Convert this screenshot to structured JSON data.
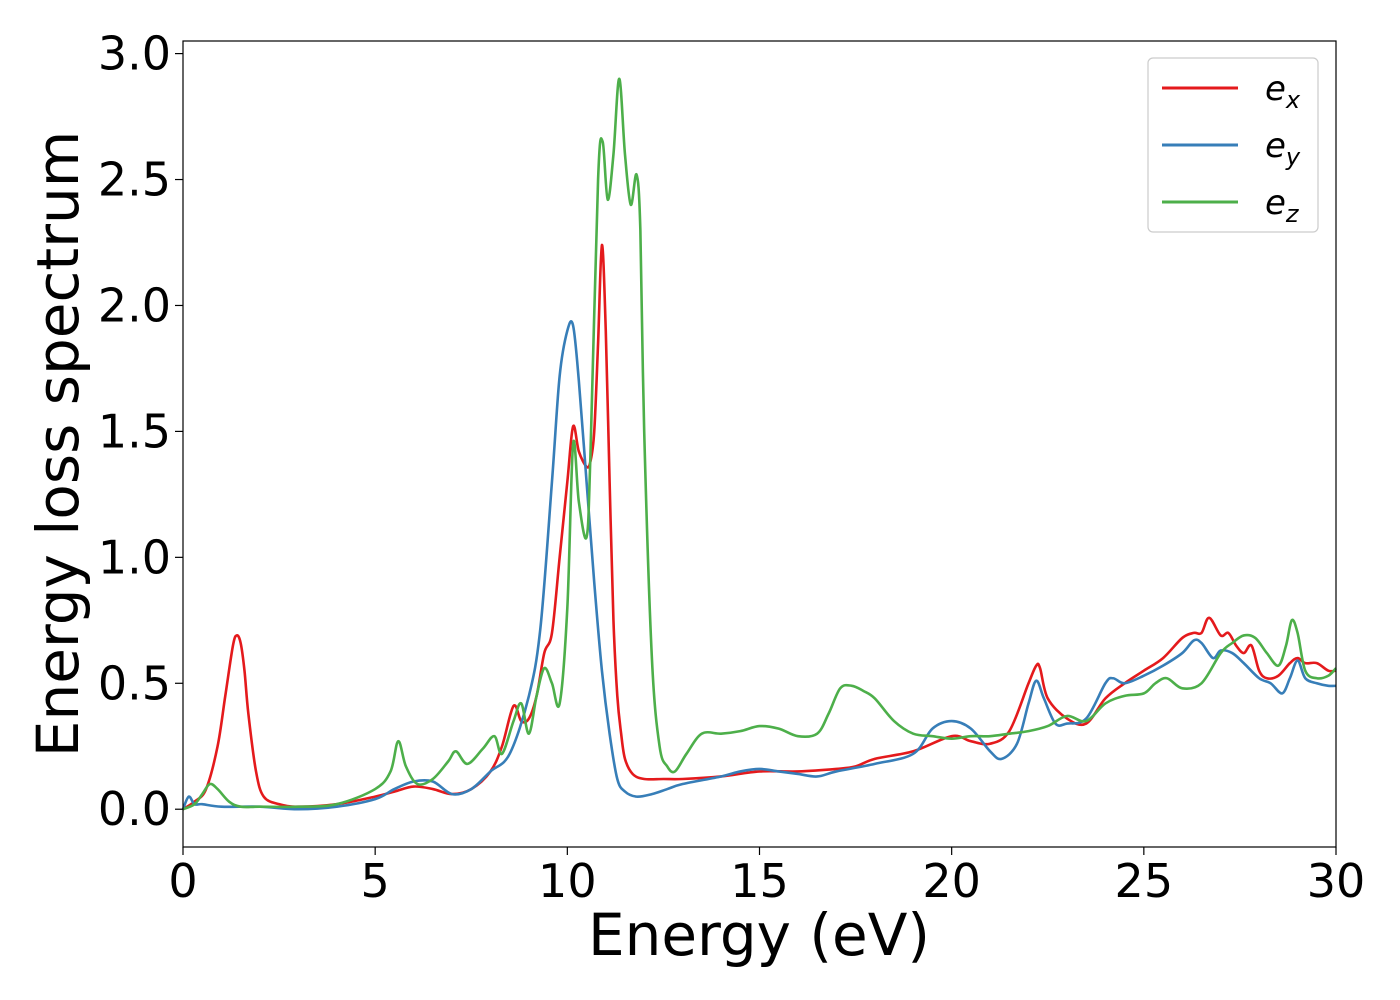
{
  "chart_data": {
    "type": "line",
    "title": "",
    "xlabel": "Energy (eV)",
    "ylabel": "Energy loss spectrum",
    "xlim": [
      0,
      30
    ],
    "ylim": [
      -0.15,
      3.05
    ],
    "xticks": [
      "0",
      "5",
      "10",
      "15",
      "20",
      "25",
      "30"
    ],
    "xtick_values": [
      0,
      5,
      10,
      15,
      20,
      25,
      30
    ],
    "yticks": [
      "0.0",
      "0.5",
      "1.0",
      "1.5",
      "2.0",
      "2.5",
      "3.0"
    ],
    "ytick_values": [
      0,
      0.5,
      1.0,
      1.5,
      2.0,
      2.5,
      3.0
    ],
    "grid": false,
    "legend_position": "top-right",
    "series": [
      {
        "name": "e_x",
        "legend_base": "e",
        "legend_sub": "x",
        "color": "#e41a1c",
        "x": [
          0,
          0.3,
          0.6,
          0.9,
          1.1,
          1.3,
          1.4,
          1.5,
          1.6,
          1.7,
          1.9,
          2.1,
          2.5,
          3.0,
          4.0,
          5.0,
          5.5,
          6.0,
          6.5,
          7.0,
          7.5,
          8.0,
          8.3,
          8.6,
          8.8,
          9.0,
          9.2,
          9.4,
          9.6,
          9.8,
          10.0,
          10.15,
          10.3,
          10.5,
          10.6,
          10.7,
          10.8,
          10.9,
          11.0,
          11.1,
          11.2,
          11.3,
          11.4,
          11.5,
          11.7,
          12.0,
          12.5,
          13,
          14,
          15,
          16,
          17,
          17.5,
          18,
          19,
          20,
          20.5,
          21,
          21.5,
          22,
          22.2,
          22.3,
          22.5,
          23,
          23.5,
          24,
          24.5,
          25,
          25.5,
          26,
          26.3,
          26.5,
          26.7,
          27,
          27.2,
          27.4,
          27.6,
          27.8,
          28,
          28.2,
          28.5,
          28.8,
          29,
          29.2,
          29.5,
          29.8,
          30
        ],
        "y": [
          0,
          0.03,
          0.08,
          0.25,
          0.45,
          0.65,
          0.69,
          0.66,
          0.55,
          0.38,
          0.15,
          0.05,
          0.02,
          0.01,
          0.02,
          0.05,
          0.07,
          0.09,
          0.08,
          0.06,
          0.08,
          0.15,
          0.25,
          0.41,
          0.35,
          0.36,
          0.45,
          0.62,
          0.7,
          1.0,
          1.3,
          1.52,
          1.42,
          1.36,
          1.38,
          1.5,
          1.85,
          2.24,
          1.9,
          1.3,
          0.75,
          0.45,
          0.3,
          0.2,
          0.14,
          0.12,
          0.12,
          0.12,
          0.13,
          0.15,
          0.15,
          0.16,
          0.17,
          0.2,
          0.23,
          0.29,
          0.27,
          0.26,
          0.31,
          0.5,
          0.57,
          0.56,
          0.44,
          0.36,
          0.34,
          0.44,
          0.5,
          0.55,
          0.6,
          0.68,
          0.7,
          0.7,
          0.76,
          0.69,
          0.7,
          0.65,
          0.62,
          0.65,
          0.55,
          0.52,
          0.53,
          0.58,
          0.6,
          0.58,
          0.58,
          0.55,
          0.55
        ]
      },
      {
        "name": "e_y",
        "legend_base": "e",
        "legend_sub": "y",
        "color": "#377eb8",
        "x": [
          0,
          0.15,
          0.3,
          0.5,
          1.0,
          2.0,
          3.0,
          4.0,
          5.0,
          5.5,
          6.0,
          6.5,
          7.0,
          7.5,
          8.0,
          8.5,
          9.0,
          9.3,
          9.6,
          9.8,
          10.0,
          10.15,
          10.3,
          10.5,
          10.7,
          10.9,
          11.1,
          11.3,
          11.5,
          11.8,
          12.2,
          12.6,
          13,
          14,
          14.5,
          15,
          15.5,
          16,
          16.5,
          17,
          18,
          19,
          19.5,
          20,
          20.5,
          21,
          21.3,
          21.7,
          22,
          22.2,
          22.4,
          22.7,
          23,
          23.5,
          24,
          24.2,
          24.5,
          25,
          25.5,
          26,
          26.3,
          26.5,
          26.8,
          27,
          27.3,
          27.6,
          28,
          28.3,
          28.6,
          28.8,
          29,
          29.2,
          29.5,
          29.8,
          30
        ],
        "y": [
          0,
          0.05,
          0.02,
          0.02,
          0.01,
          0.01,
          0.0,
          0.01,
          0.04,
          0.08,
          0.11,
          0.11,
          0.06,
          0.08,
          0.15,
          0.22,
          0.45,
          0.72,
          1.3,
          1.72,
          1.9,
          1.92,
          1.7,
          1.3,
          0.9,
          0.55,
          0.3,
          0.12,
          0.07,
          0.05,
          0.06,
          0.08,
          0.1,
          0.13,
          0.15,
          0.16,
          0.15,
          0.14,
          0.13,
          0.15,
          0.18,
          0.22,
          0.32,
          0.35,
          0.32,
          0.23,
          0.2,
          0.26,
          0.42,
          0.51,
          0.44,
          0.34,
          0.34,
          0.36,
          0.5,
          0.52,
          0.5,
          0.53,
          0.57,
          0.62,
          0.67,
          0.66,
          0.6,
          0.63,
          0.62,
          0.58,
          0.52,
          0.5,
          0.46,
          0.52,
          0.59,
          0.52,
          0.5,
          0.49,
          0.49
        ]
      },
      {
        "name": "e_z",
        "legend_base": "e",
        "legend_sub": "z",
        "color": "#4daf4a",
        "x": [
          0,
          0.3,
          0.5,
          0.7,
          0.9,
          1.2,
          1.5,
          2.0,
          3.0,
          4.0,
          5.0,
          5.4,
          5.6,
          5.8,
          6.1,
          6.5,
          6.9,
          7.1,
          7.4,
          7.8,
          8.1,
          8.3,
          8.6,
          8.8,
          9.0,
          9.2,
          9.4,
          9.6,
          9.8,
          10.0,
          10.15,
          10.3,
          10.5,
          10.6,
          10.8,
          10.92,
          11.05,
          11.2,
          11.35,
          11.5,
          11.65,
          11.8,
          11.9,
          12.0,
          12.2,
          12.4,
          12.6,
          12.8,
          13.1,
          13.5,
          14,
          14.5,
          15,
          15.5,
          16,
          16.5,
          16.8,
          17.1,
          17.4,
          17.7,
          18,
          18.5,
          19,
          19.5,
          20,
          20.5,
          21,
          21.5,
          22,
          22.5,
          23,
          23.5,
          24,
          24.5,
          25,
          25.3,
          25.6,
          26,
          26.5,
          27,
          27.3,
          27.6,
          27.9,
          28.2,
          28.5,
          28.7,
          28.85,
          29.0,
          29.2,
          29.5,
          29.8,
          30
        ],
        "y": [
          0,
          0.02,
          0.06,
          0.1,
          0.08,
          0.03,
          0.01,
          0.01,
          0.01,
          0.02,
          0.08,
          0.15,
          0.27,
          0.17,
          0.1,
          0.12,
          0.19,
          0.23,
          0.18,
          0.24,
          0.29,
          0.22,
          0.35,
          0.42,
          0.3,
          0.45,
          0.56,
          0.5,
          0.42,
          0.8,
          1.45,
          1.22,
          1.08,
          1.4,
          2.5,
          2.65,
          2.42,
          2.6,
          2.9,
          2.6,
          2.4,
          2.52,
          2.3,
          1.5,
          0.6,
          0.25,
          0.17,
          0.15,
          0.22,
          0.3,
          0.3,
          0.31,
          0.33,
          0.32,
          0.29,
          0.3,
          0.38,
          0.48,
          0.49,
          0.47,
          0.44,
          0.35,
          0.3,
          0.29,
          0.28,
          0.29,
          0.29,
          0.3,
          0.31,
          0.33,
          0.37,
          0.35,
          0.42,
          0.45,
          0.46,
          0.5,
          0.52,
          0.48,
          0.5,
          0.62,
          0.66,
          0.69,
          0.68,
          0.62,
          0.57,
          0.65,
          0.75,
          0.7,
          0.55,
          0.52,
          0.53,
          0.56
        ]
      }
    ]
  }
}
